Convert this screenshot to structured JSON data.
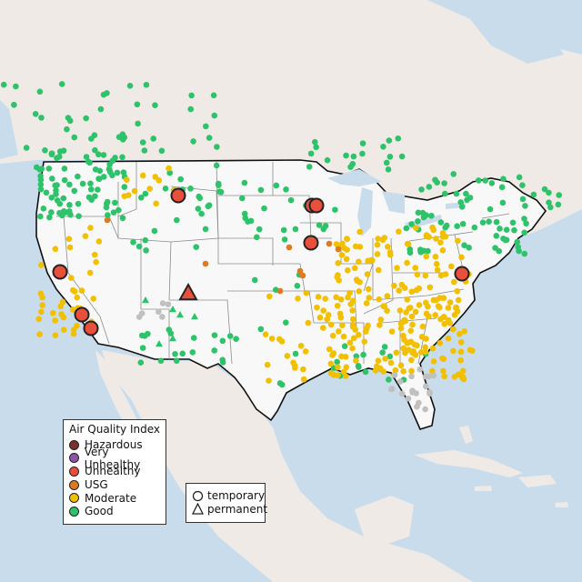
{
  "colors": {
    "hazardous": "#7b3128",
    "very_unhealthy": "#8e52a6",
    "unhealthy": "#e8503c",
    "usg": "#e07a1f",
    "moderate": "#f2c000",
    "good": "#2ec36a",
    "no_data": "#c0c0c0",
    "ocean": "#c9dcec",
    "land": "#efeae6",
    "us_land": "#f8f8f8"
  },
  "legend": {
    "title": "Air Quality Index",
    "items": [
      {
        "label": "Hazardous",
        "color": "#7b3128"
      },
      {
        "label": "Very Unhealthy",
        "color": "#8e52a6"
      },
      {
        "label": "Unhealthy",
        "color": "#e8503c"
      },
      {
        "label": "USG",
        "color": "#e07a1f"
      },
      {
        "label": "Moderate",
        "color": "#f2c000"
      },
      {
        "label": "Good",
        "color": "#2ec36a"
      }
    ]
  },
  "type_legend": {
    "temporary": "temporary",
    "permanent": "permanent"
  },
  "monitors": {
    "unhealthy_temporary_count": 8,
    "unhealthy_permanent_count": 1
  }
}
